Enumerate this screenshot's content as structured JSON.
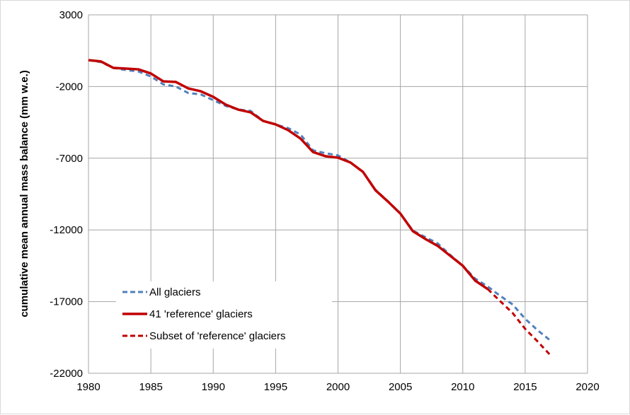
{
  "chart_data": {
    "type": "line",
    "title": "",
    "xlabel": "",
    "ylabel": "cumulative mean annual mass balance (mm w.e.)",
    "xlim": [
      1980,
      2020
    ],
    "ylim": [
      -22000,
      3000
    ],
    "xticks": [
      1980,
      1985,
      1990,
      1995,
      2000,
      2005,
      2010,
      2015,
      2020
    ],
    "yticks": [
      3000,
      -2000,
      -7000,
      -12000,
      -17000,
      -22000
    ],
    "grid": true,
    "legend_position": "bottom-left",
    "series": [
      {
        "name": "All glaciers",
        "color": "#4f81bd",
        "style": "dashed",
        "x": [
          1980,
          1981,
          1982,
          1983,
          1984,
          1985,
          1986,
          1987,
          1988,
          1989,
          1990,
          1991,
          1992,
          1993,
          1994,
          1995,
          1996,
          1997,
          1998,
          1999,
          2000,
          2001,
          2002,
          2003,
          2004,
          2005,
          2006,
          2007,
          2008,
          2009,
          2010,
          2011,
          2012,
          2013,
          2014,
          2015,
          2016,
          2017
        ],
        "y": [
          -160,
          -300,
          -700,
          -850,
          -950,
          -1300,
          -1850,
          -2000,
          -2450,
          -2550,
          -2950,
          -3350,
          -3600,
          -3700,
          -4400,
          -4650,
          -4900,
          -5350,
          -6450,
          -6650,
          -6800,
          -7300,
          -7950,
          -9200,
          -10000,
          -10850,
          -12050,
          -12500,
          -12950,
          -13750,
          -14500,
          -15400,
          -15950,
          -16600,
          -17200,
          -18200,
          -19000,
          -19700
        ]
      },
      {
        "name": "41 'reference' glaciers",
        "color": "#c00000",
        "style": "solid",
        "x": [
          1980,
          1981,
          1982,
          1983,
          1984,
          1985,
          1986,
          1987,
          1988,
          1989,
          1990,
          1991,
          1992,
          1993,
          1994,
          1995,
          1996,
          1997,
          1998,
          1999,
          2000,
          2001,
          2002,
          2003,
          2004,
          2005,
          2006,
          2007,
          2008,
          2009,
          2010,
          2011,
          2012
        ],
        "y": [
          -160,
          -250,
          -700,
          -750,
          -800,
          -1090,
          -1640,
          -1680,
          -2130,
          -2330,
          -2720,
          -3260,
          -3610,
          -3800,
          -4400,
          -4640,
          -5040,
          -5630,
          -6570,
          -6860,
          -6960,
          -7300,
          -7950,
          -9230,
          -10020,
          -10860,
          -12090,
          -12630,
          -13120,
          -13810,
          -14500,
          -15540,
          -16130
        ]
      },
      {
        "name": "Subset of 'reference' glaciers",
        "color": "#c00000",
        "style": "dashed",
        "x": [
          1980,
          1981,
          1982,
          1983,
          1984,
          2012,
          2013,
          2014,
          2015,
          2016,
          2017
        ],
        "y": [
          -160,
          -250,
          -700,
          -750,
          -800,
          -16130,
          -16970,
          -17800,
          -18900,
          -19780,
          -20720
        ],
        "segments": [
          [
            1980,
            1984
          ],
          [
            2012,
            2017
          ]
        ]
      }
    ]
  }
}
